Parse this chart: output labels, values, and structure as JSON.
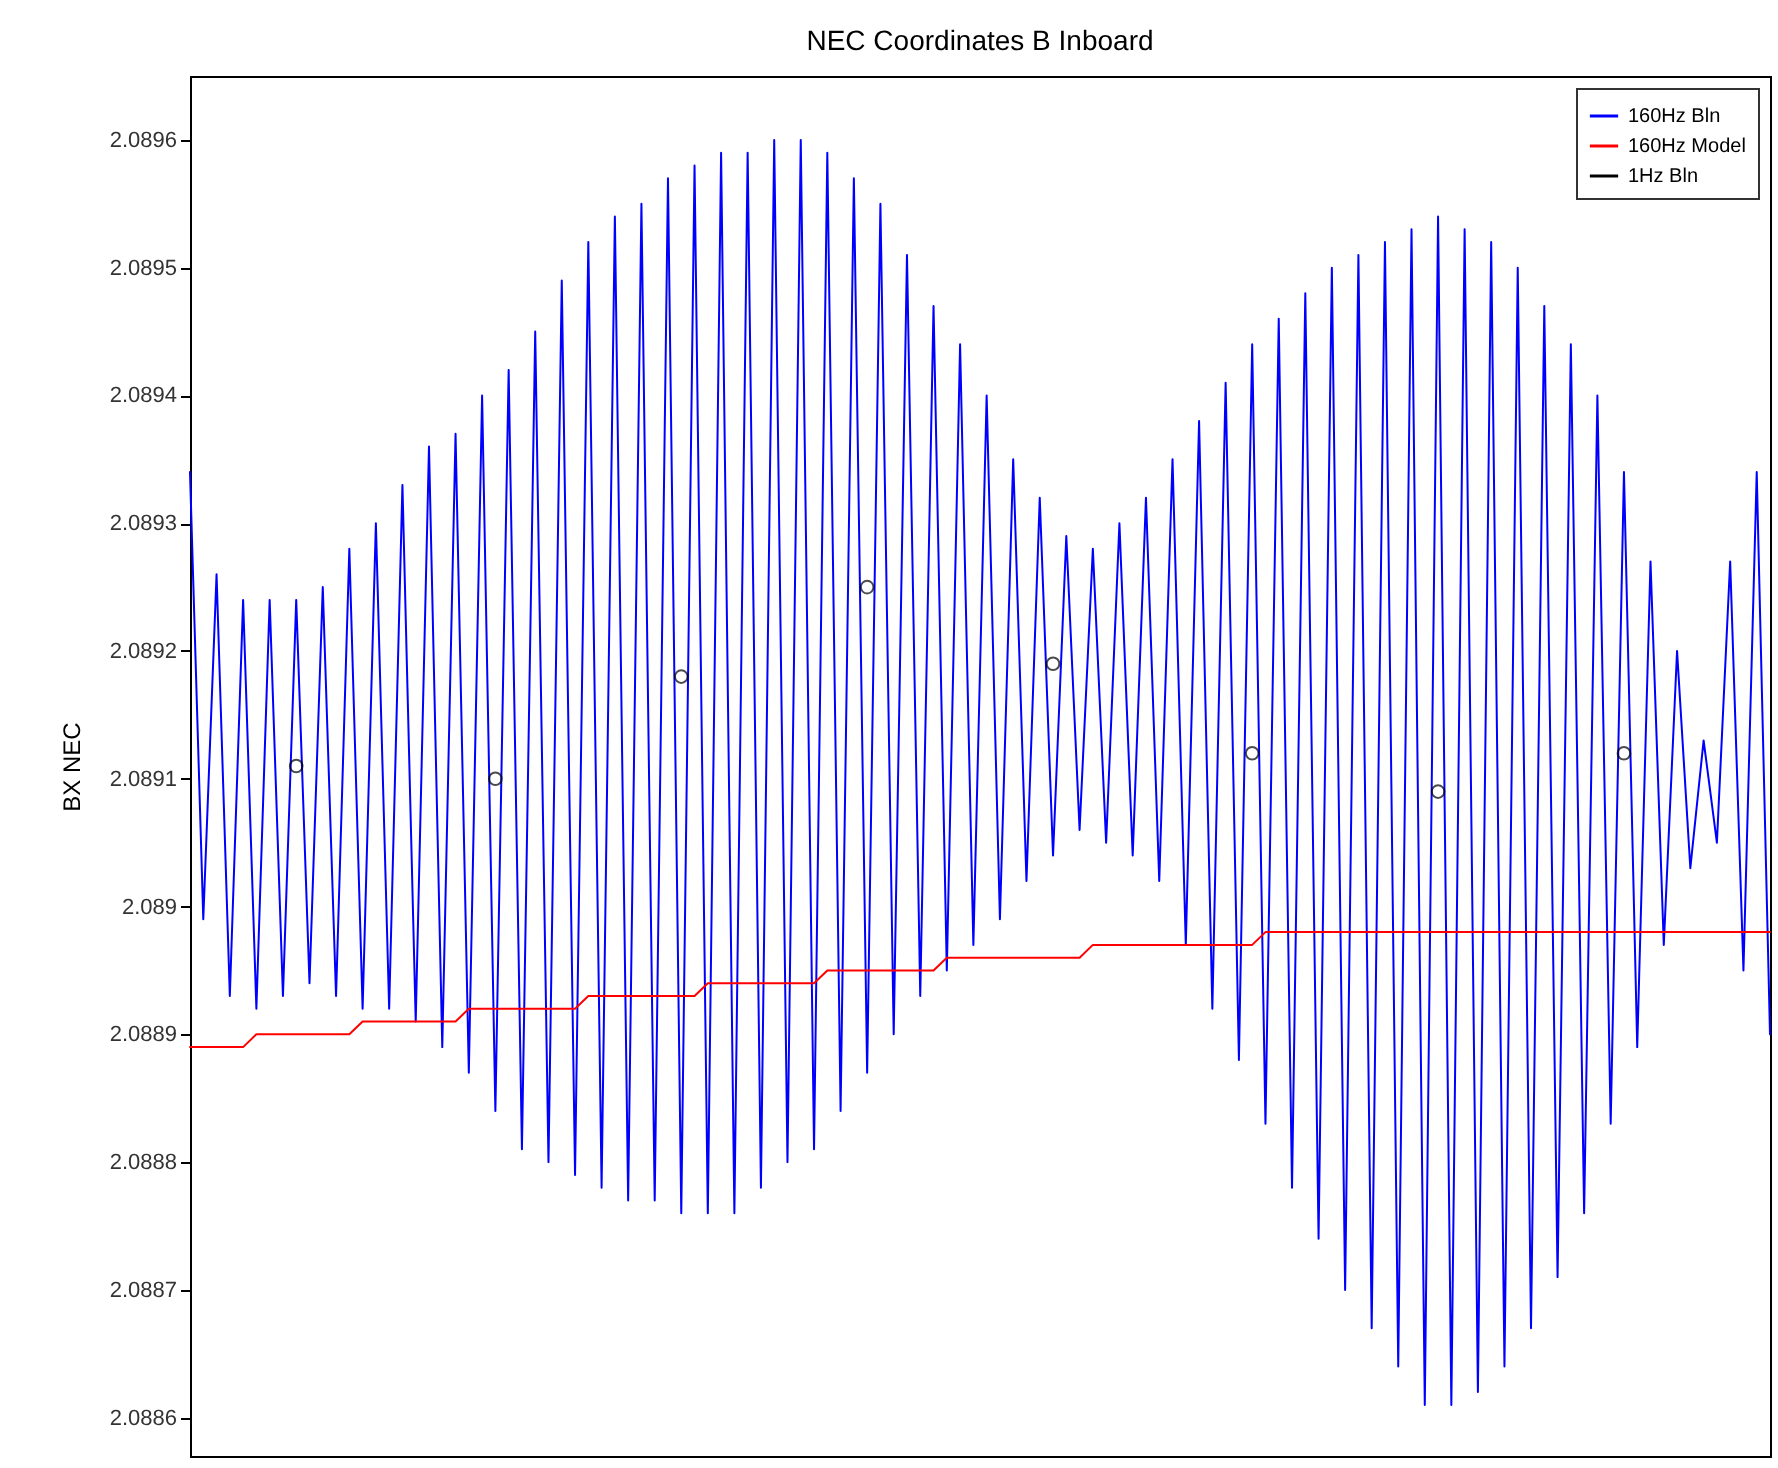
{
  "chart_data": {
    "type": "line",
    "title": "NEC Coordinates B Inboard",
    "ylabel": "BX NEC",
    "categories": [
      null,
      null,
      null,
      null,
      null,
      null,
      null,
      null,
      null,
      null,
      null,
      null,
      null,
      null,
      null,
      null,
      null,
      null,
      null,
      null,
      null,
      null,
      null,
      null,
      null,
      null,
      null,
      null,
      null,
      null,
      null,
      null,
      null,
      null,
      null,
      null,
      null,
      null,
      null,
      null,
      null,
      null,
      null,
      null,
      null,
      null,
      null,
      null,
      null,
      null,
      null,
      null,
      null,
      null,
      null,
      null,
      null,
      null,
      null,
      null,
      null,
      null,
      null,
      null,
      null,
      null,
      null,
      null,
      null,
      null,
      null,
      null,
      null,
      null,
      null,
      null,
      null,
      null,
      null,
      null,
      null,
      null,
      null,
      null,
      null,
      null,
      null,
      null,
      null,
      null,
      null,
      null,
      null,
      null,
      null,
      null,
      null,
      null,
      null,
      null,
      null,
      null,
      null,
      null,
      null,
      null,
      null,
      null,
      null,
      null,
      null,
      null,
      null,
      null,
      null,
      null,
      null,
      null,
      null,
      null
    ],
    "ylim": [
      2.08857,
      2.08965
    ],
    "yticks": [
      2.0886,
      2.0887,
      2.0888,
      2.0889,
      2.089,
      2.0891,
      2.0892,
      2.0893,
      2.0894,
      2.0895,
      2.0896
    ],
    "tick_labels": "y",
    "legend": "top right",
    "series": [
      {
        "name": "160Hz Bln",
        "type": "line",
        "color": "#0000ff",
        "values": [
          2.08934,
          2.08899,
          2.08926,
          2.08893,
          2.08924,
          2.08892,
          2.08924,
          2.08893,
          2.08924,
          2.08894,
          2.08925,
          2.08893,
          2.08928,
          2.08892,
          2.0893,
          2.08892,
          2.08933,
          2.08891,
          2.08936,
          2.08889,
          2.08937,
          2.08887,
          2.0894,
          2.08884,
          2.08942,
          2.08881,
          2.08945,
          2.0888,
          2.08949,
          2.08879,
          2.08952,
          2.08878,
          2.08954,
          2.08877,
          2.08955,
          2.08877,
          2.08957,
          2.08876,
          2.08958,
          2.08876,
          2.08959,
          2.08876,
          2.08959,
          2.08878,
          2.0896,
          2.0888,
          2.0896,
          2.08881,
          2.08959,
          2.08884,
          2.08957,
          2.08887,
          2.08955,
          2.0889,
          2.08951,
          2.08893,
          2.08947,
          2.08895,
          2.08944,
          2.08897,
          2.0894,
          2.08899,
          2.08935,
          2.08902,
          2.08932,
          2.08904,
          2.08929,
          2.08906,
          2.08928,
          2.08905,
          2.0893,
          2.08904,
          2.08932,
          2.08902,
          2.08935,
          2.08897,
          2.08938,
          2.08892,
          2.08941,
          2.08888,
          2.08944,
          2.08883,
          2.08946,
          2.08878,
          2.08948,
          2.08874,
          2.0895,
          2.0887,
          2.08951,
          2.08867,
          2.08952,
          2.08864,
          2.08953,
          2.08861,
          2.08954,
          2.08861,
          2.08953,
          2.08862,
          2.08952,
          2.08864,
          2.0895,
          2.08867,
          2.08947,
          2.08871,
          2.08944,
          2.08876,
          2.0894,
          2.08883,
          2.08934,
          2.08889,
          2.08927,
          2.08897,
          2.0892,
          2.08903,
          2.08913,
          2.08905,
          2.08927,
          2.08895,
          2.08934,
          2.0889
        ]
      },
      {
        "name": "160Hz Model",
        "type": "line",
        "color": "#ff0000",
        "values": [
          2.08889,
          2.08889,
          2.08889,
          2.08889,
          2.08889,
          2.0889,
          2.0889,
          2.0889,
          2.0889,
          2.0889,
          2.0889,
          2.0889,
          2.0889,
          2.08891,
          2.08891,
          2.08891,
          2.08891,
          2.08891,
          2.08891,
          2.08891,
          2.08891,
          2.08892,
          2.08892,
          2.08892,
          2.08892,
          2.08892,
          2.08892,
          2.08892,
          2.08892,
          2.08892,
          2.08893,
          2.08893,
          2.08893,
          2.08893,
          2.08893,
          2.08893,
          2.08893,
          2.08893,
          2.08893,
          2.08894,
          2.08894,
          2.08894,
          2.08894,
          2.08894,
          2.08894,
          2.08894,
          2.08894,
          2.08894,
          2.08895,
          2.08895,
          2.08895,
          2.08895,
          2.08895,
          2.08895,
          2.08895,
          2.08895,
          2.08895,
          2.08896,
          2.08896,
          2.08896,
          2.08896,
          2.08896,
          2.08896,
          2.08896,
          2.08896,
          2.08896,
          2.08896,
          2.08896,
          2.08897,
          2.08897,
          2.08897,
          2.08897,
          2.08897,
          2.08897,
          2.08897,
          2.08897,
          2.08897,
          2.08897,
          2.08897,
          2.08897,
          2.08897,
          2.08898,
          2.08898,
          2.08898,
          2.08898,
          2.08898,
          2.08898,
          2.08898,
          2.08898,
          2.08898,
          2.08898,
          2.08898,
          2.08898,
          2.08898,
          2.08898,
          2.08898,
          2.08898,
          2.08898,
          2.08898,
          2.08898,
          2.08898,
          2.08898,
          2.08898,
          2.08898,
          2.08898,
          2.08898,
          2.08898,
          2.08898,
          2.08898,
          2.08898,
          2.08898,
          2.08898,
          2.08898,
          2.08898,
          2.08898,
          2.08898,
          2.08898,
          2.08898,
          2.08898,
          2.08898
        ]
      },
      {
        "name": "1Hz Bln",
        "type": "scatter",
        "marker": "circle",
        "color": "#000000",
        "values": [
          null,
          null,
          null,
          null,
          null,
          null,
          null,
          null,
          2.08911,
          null,
          null,
          null,
          null,
          null,
          null,
          null,
          null,
          null,
          null,
          null,
          null,
          null,
          null,
          2.0891,
          null,
          null,
          null,
          null,
          null,
          null,
          null,
          null,
          null,
          null,
          null,
          null,
          null,
          2.08918,
          null,
          null,
          null,
          null,
          null,
          null,
          null,
          null,
          null,
          null,
          null,
          null,
          null,
          2.08925,
          null,
          null,
          null,
          null,
          null,
          null,
          null,
          null,
          null,
          null,
          null,
          null,
          null,
          2.08919,
          null,
          null,
          null,
          null,
          null,
          null,
          null,
          null,
          null,
          null,
          null,
          null,
          null,
          null,
          2.08912,
          null,
          null,
          null,
          null,
          null,
          null,
          null,
          null,
          null,
          null,
          null,
          null,
          null,
          2.08909,
          null,
          null,
          null,
          null,
          null,
          null,
          null,
          null,
          null,
          null,
          null,
          null,
          null,
          2.08912,
          null,
          null,
          null,
          null,
          null,
          null,
          null,
          null,
          null,
          null,
          null
        ]
      }
    ]
  }
}
